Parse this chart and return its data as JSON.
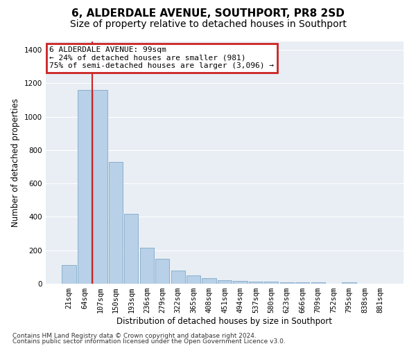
{
  "title": "6, ALDERDALE AVENUE, SOUTHPORT, PR8 2SD",
  "subtitle": "Size of property relative to detached houses in Southport",
  "xlabel": "Distribution of detached houses by size in Southport",
  "ylabel": "Number of detached properties",
  "categories": [
    "21sqm",
    "64sqm",
    "107sqm",
    "150sqm",
    "193sqm",
    "236sqm",
    "279sqm",
    "322sqm",
    "365sqm",
    "408sqm",
    "451sqm",
    "494sqm",
    "537sqm",
    "580sqm",
    "623sqm",
    "666sqm",
    "709sqm",
    "752sqm",
    "795sqm",
    "838sqm",
    "881sqm"
  ],
  "values": [
    110,
    1160,
    1160,
    730,
    420,
    215,
    150,
    80,
    50,
    35,
    20,
    15,
    12,
    12,
    10,
    8,
    8,
    0,
    10,
    0,
    0
  ],
  "bar_color": "#b8d0e8",
  "bar_edge_color": "#8ab0cc",
  "red_line_x": 1.5,
  "annotation_text": "6 ALDERDALE AVENUE: 99sqm\n← 24% of detached houses are smaller (981)\n75% of semi-detached houses are larger (3,096) →",
  "annotation_box_color": "#ffffff",
  "annotation_box_edge_color": "#cc2222",
  "red_line_color": "#cc2222",
  "ylim": [
    0,
    1450
  ],
  "yticks": [
    0,
    200,
    400,
    600,
    800,
    1000,
    1200,
    1400
  ],
  "bg_color": "#e8eef4",
  "footer_line1": "Contains HM Land Registry data © Crown copyright and database right 2024.",
  "footer_line2": "Contains public sector information licensed under the Open Government Licence v3.0.",
  "title_fontsize": 11,
  "subtitle_fontsize": 10,
  "axis_label_fontsize": 8.5,
  "tick_fontsize": 7.5,
  "annotation_fontsize": 8,
  "footer_fontsize": 6.5
}
